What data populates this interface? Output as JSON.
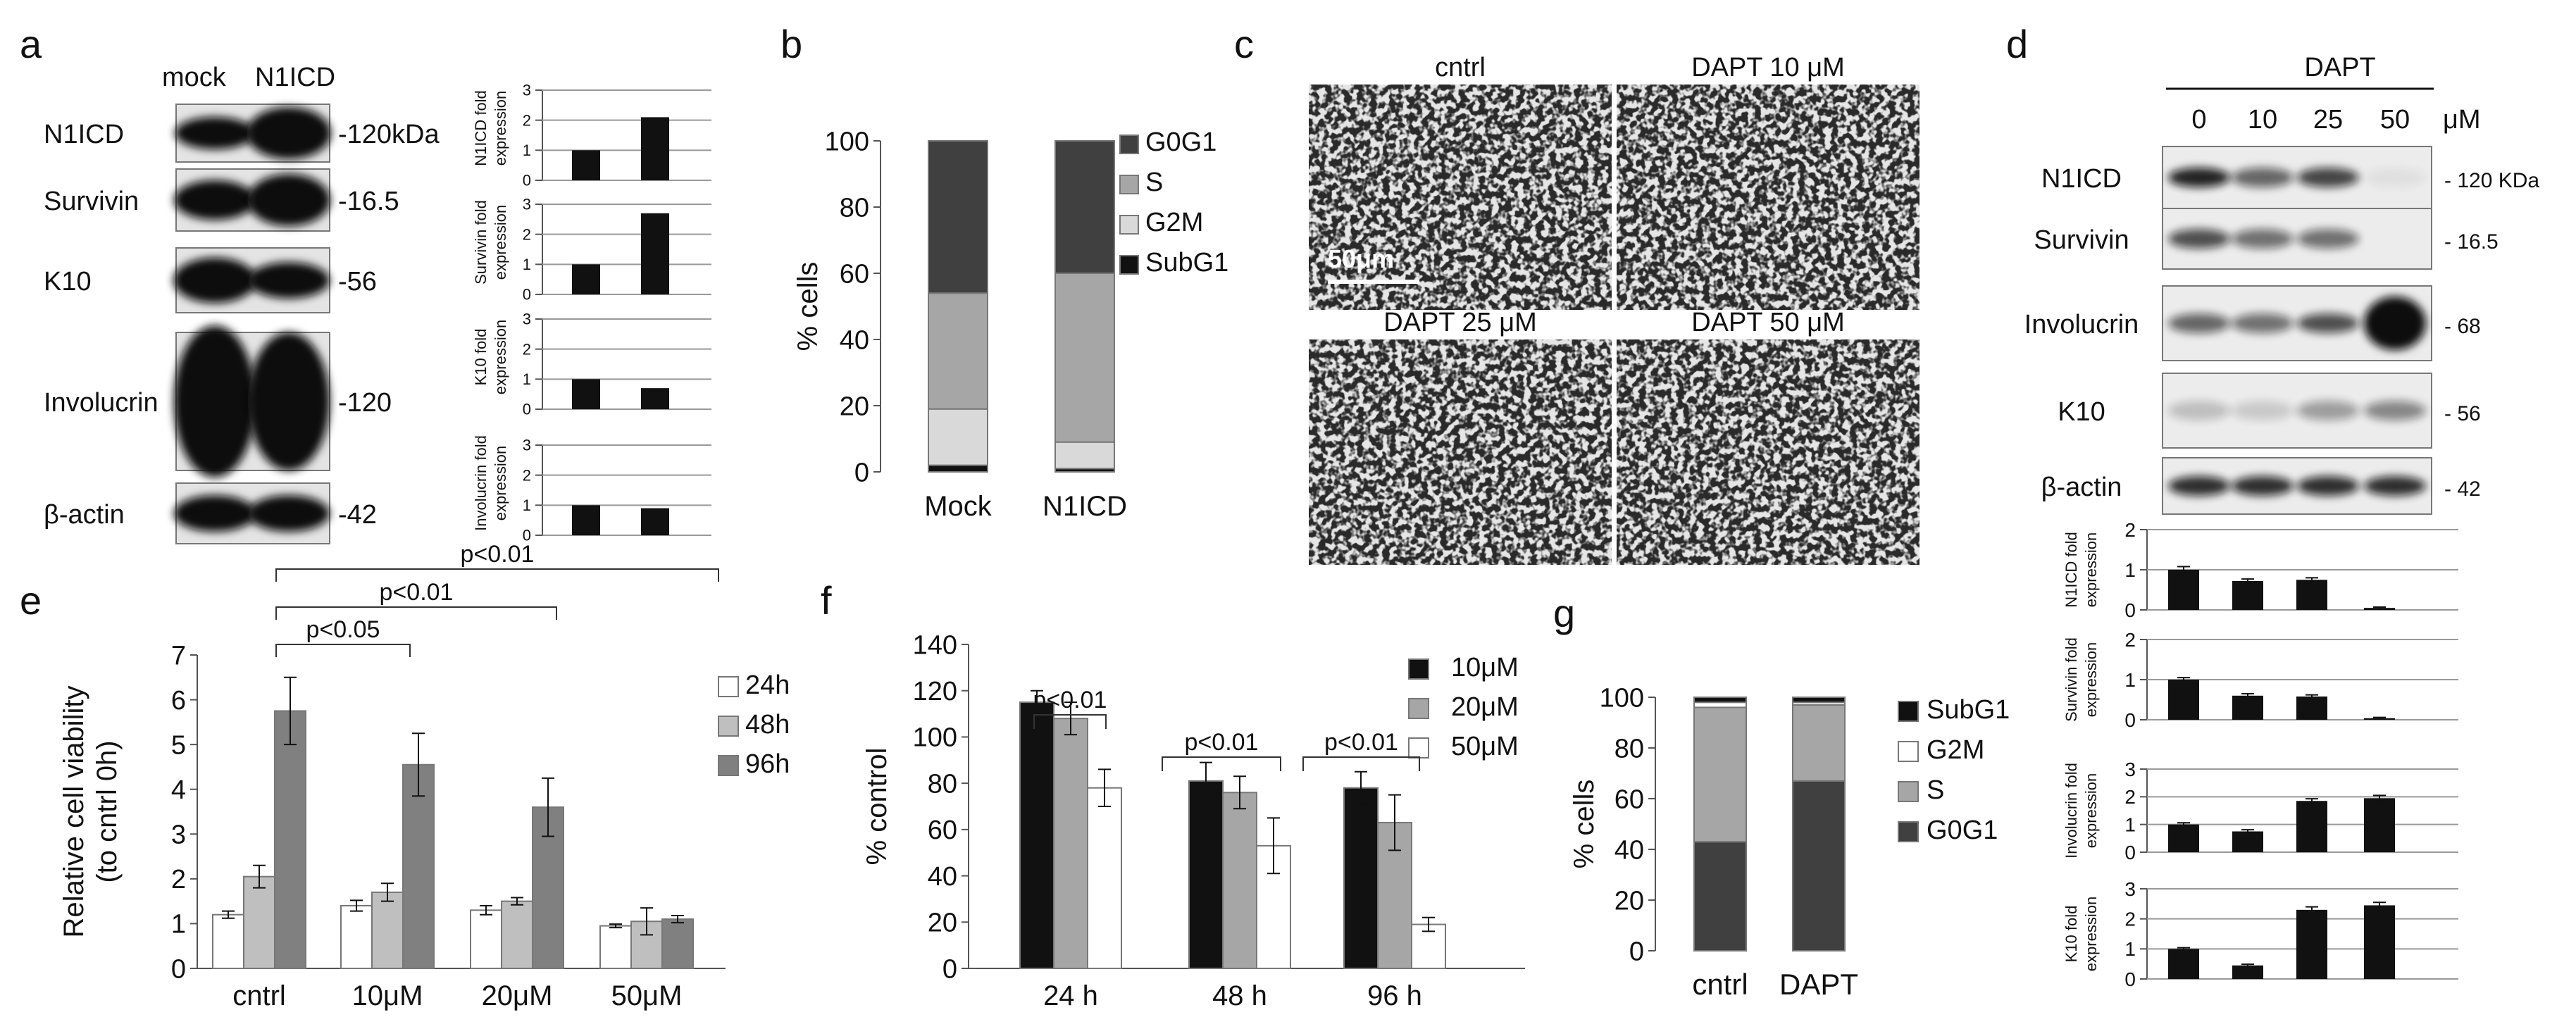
{
  "panel_labels": [
    "a",
    "b",
    "c",
    "d",
    "e",
    "f",
    "g"
  ],
  "chart_data": [
    {
      "panel": "a",
      "type": "blot",
      "lanes": [
        "mock",
        "N1ICD"
      ],
      "rows": [
        {
          "label": "N1ICD",
          "marker": "-120kDa"
        },
        {
          "label": "Survivin",
          "marker": "-16.5"
        },
        {
          "label": "K10",
          "marker": "-56"
        },
        {
          "label": "Involucrin",
          "marker": "-120"
        },
        {
          "label": "β-actin",
          "marker": "-42"
        }
      ]
    },
    {
      "panel": "a",
      "type": "bar",
      "categories": [
        "mock",
        "N1ICD"
      ],
      "subplots": [
        {
          "ylabel": [
            "N1ICD fold",
            "expression"
          ],
          "yticks": [
            "0",
            "1",
            "2",
            "3"
          ],
          "ylim": [
            0,
            3
          ],
          "values": [
            1.0,
            2.1
          ]
        },
        {
          "ylabel": [
            "Survivin fold",
            "expression"
          ],
          "yticks": [
            "0",
            "1",
            "2",
            "3"
          ],
          "ylim": [
            0,
            3
          ],
          "values": [
            1.0,
            2.7
          ]
        },
        {
          "ylabel": [
            "K10 fold",
            "expression"
          ],
          "yticks": [
            "0",
            "1",
            "2",
            "3"
          ],
          "ylim": [
            0,
            3
          ],
          "values": [
            1.0,
            0.7
          ]
        },
        {
          "ylabel": [
            "Involucrin fold",
            "expression"
          ],
          "yticks": [
            "0",
            "1",
            "2",
            "3"
          ],
          "ylim": [
            0,
            3
          ],
          "values": [
            1.0,
            0.9
          ]
        }
      ]
    },
    {
      "panel": "b",
      "type": "bar",
      "stacked": true,
      "categories": [
        "Mock",
        "N1ICD"
      ],
      "ylabel": "% cells",
      "ylim": [
        0,
        100
      ],
      "yticks": [
        "0",
        "20",
        "40",
        "60",
        "80",
        "100"
      ],
      "series": [
        {
          "name": "SubG1",
          "color": "#111111",
          "values": [
            2,
            1
          ]
        },
        {
          "name": "G2M",
          "color": "#d9d9d9",
          "values": [
            17,
            8
          ]
        },
        {
          "name": "S",
          "color": "#a6a6a6",
          "values": [
            35,
            51
          ]
        },
        {
          "name": "G0G1",
          "color": "#404040",
          "values": [
            46,
            40
          ]
        }
      ],
      "legend_order": [
        "G0G1",
        "S",
        "G2M",
        "SubG1"
      ]
    },
    {
      "panel": "c",
      "type": "micrograph",
      "images": [
        "cntrl",
        "DAPT 10 μM",
        "DAPT 25 μM",
        "DAPT 50 μM"
      ],
      "scale_bar": "50μm"
    },
    {
      "panel": "d",
      "type": "blot",
      "header": "DAPT",
      "lanes": [
        "0",
        "10",
        "25",
        "50"
      ],
      "lane_unit": "μM",
      "rows": [
        {
          "label": "N1ICD",
          "marker": "- 120 KDa"
        },
        {
          "label": "Survivin",
          "marker": "- 16.5"
        },
        {
          "label": "Involucrin",
          "marker": "- 68"
        },
        {
          "label": "K10",
          "marker": "- 56"
        },
        {
          "label": "β-actin",
          "marker": "- 42"
        }
      ]
    },
    {
      "panel": "d",
      "type": "bar",
      "categories": [
        "0",
        "10",
        "25",
        "50"
      ],
      "subplots": [
        {
          "ylabel": [
            "N1ICD fold",
            "expression"
          ],
          "yticks": [
            "0",
            "1",
            "2"
          ],
          "ylim": [
            0,
            2
          ],
          "values": [
            1.0,
            0.72,
            0.75,
            0.05
          ],
          "errors": [
            0.08,
            0.05,
            0.05,
            0.02
          ]
        },
        {
          "ylabel": [
            "Survivin fold",
            "expression"
          ],
          "yticks": [
            "0",
            "1",
            "2"
          ],
          "ylim": [
            0,
            2
          ],
          "values": [
            1.0,
            0.6,
            0.58,
            0.04
          ],
          "errors": [
            0.05,
            0.05,
            0.04,
            0.02
          ]
        },
        {
          "ylabel": [
            "Involucrin fold",
            "expression"
          ],
          "yticks": [
            "0",
            "1",
            "2",
            "3"
          ],
          "ylim": [
            0,
            3
          ],
          "values": [
            1.0,
            0.75,
            1.85,
            1.95
          ],
          "errors": [
            0.06,
            0.06,
            0.08,
            0.1
          ]
        },
        {
          "ylabel": [
            "K10 fold",
            "expression"
          ],
          "yticks": [
            "0",
            "1",
            "2",
            "3"
          ],
          "ylim": [
            0,
            3
          ],
          "values": [
            1.0,
            0.45,
            2.3,
            2.45
          ],
          "errors": [
            0.04,
            0.04,
            0.1,
            0.1
          ]
        }
      ]
    },
    {
      "panel": "e",
      "type": "bar",
      "categories": [
        "cntrl",
        "10μM",
        "20μM",
        "50μM"
      ],
      "ylabel": [
        "Relative cell viability",
        "(to cntrl 0h)"
      ],
      "ylim": [
        0,
        7
      ],
      "yticks": [
        "0",
        "1",
        "2",
        "3",
        "4",
        "5",
        "6",
        "7"
      ],
      "series": [
        {
          "name": "24h",
          "color": "#ffffff",
          "values": [
            1.2,
            1.4,
            1.3,
            0.95
          ],
          "errors": [
            0.08,
            0.12,
            0.1,
            0.04
          ]
        },
        {
          "name": "48h",
          "color": "#bfbfbf",
          "values": [
            2.05,
            1.7,
            1.5,
            1.05
          ],
          "errors": [
            0.25,
            0.2,
            0.08,
            0.3
          ]
        },
        {
          "name": "96h",
          "color": "#808080",
          "values": [
            5.75,
            4.55,
            3.6,
            1.1
          ],
          "errors": [
            0.75,
            0.7,
            0.65,
            0.08
          ]
        }
      ],
      "annotations": [
        "p<0.05",
        "p<0.01",
        "p<0.01"
      ]
    },
    {
      "panel": "f",
      "type": "bar",
      "categories": [
        "24 h",
        "48 h",
        "96 h"
      ],
      "ylabel": "% control",
      "ylim": [
        0,
        140
      ],
      "yticks": [
        "0",
        "20",
        "40",
        "60",
        "80",
        "100",
        "120",
        "140"
      ],
      "series": [
        {
          "name": "10μM",
          "color": "#111111",
          "values": [
            115,
            81,
            78
          ],
          "errors": [
            5,
            8,
            7
          ]
        },
        {
          "name": "20μM",
          "color": "#a6a6a6",
          "values": [
            108,
            76,
            63
          ],
          "errors": [
            7,
            7,
            12
          ]
        },
        {
          "name": "50μM",
          "color": "#ffffff",
          "values": [
            78,
            53,
            19
          ],
          "errors": [
            8,
            12,
            3
          ]
        }
      ],
      "annotations": [
        "p<0.01",
        "p<0.01",
        "p<0.01"
      ]
    },
    {
      "panel": "g",
      "type": "bar",
      "stacked": true,
      "categories": [
        "cntrl",
        "DAPT"
      ],
      "ylabel": "% cells",
      "ylim": [
        0,
        100
      ],
      "yticks": [
        "0",
        "20",
        "40",
        "60",
        "80",
        "100"
      ],
      "series": [
        {
          "name": "G0G1",
          "color": "#404040",
          "values": [
            43,
            67
          ]
        },
        {
          "name": "S",
          "color": "#a6a6a6",
          "values": [
            53,
            30
          ]
        },
        {
          "name": "G2M",
          "color": "#ffffff",
          "values": [
            2,
            1
          ]
        },
        {
          "name": "SubG1",
          "color": "#111111",
          "values": [
            2,
            2
          ]
        }
      ],
      "legend_order": [
        "SubG1",
        "G2M",
        "S",
        "G0G1"
      ]
    }
  ]
}
